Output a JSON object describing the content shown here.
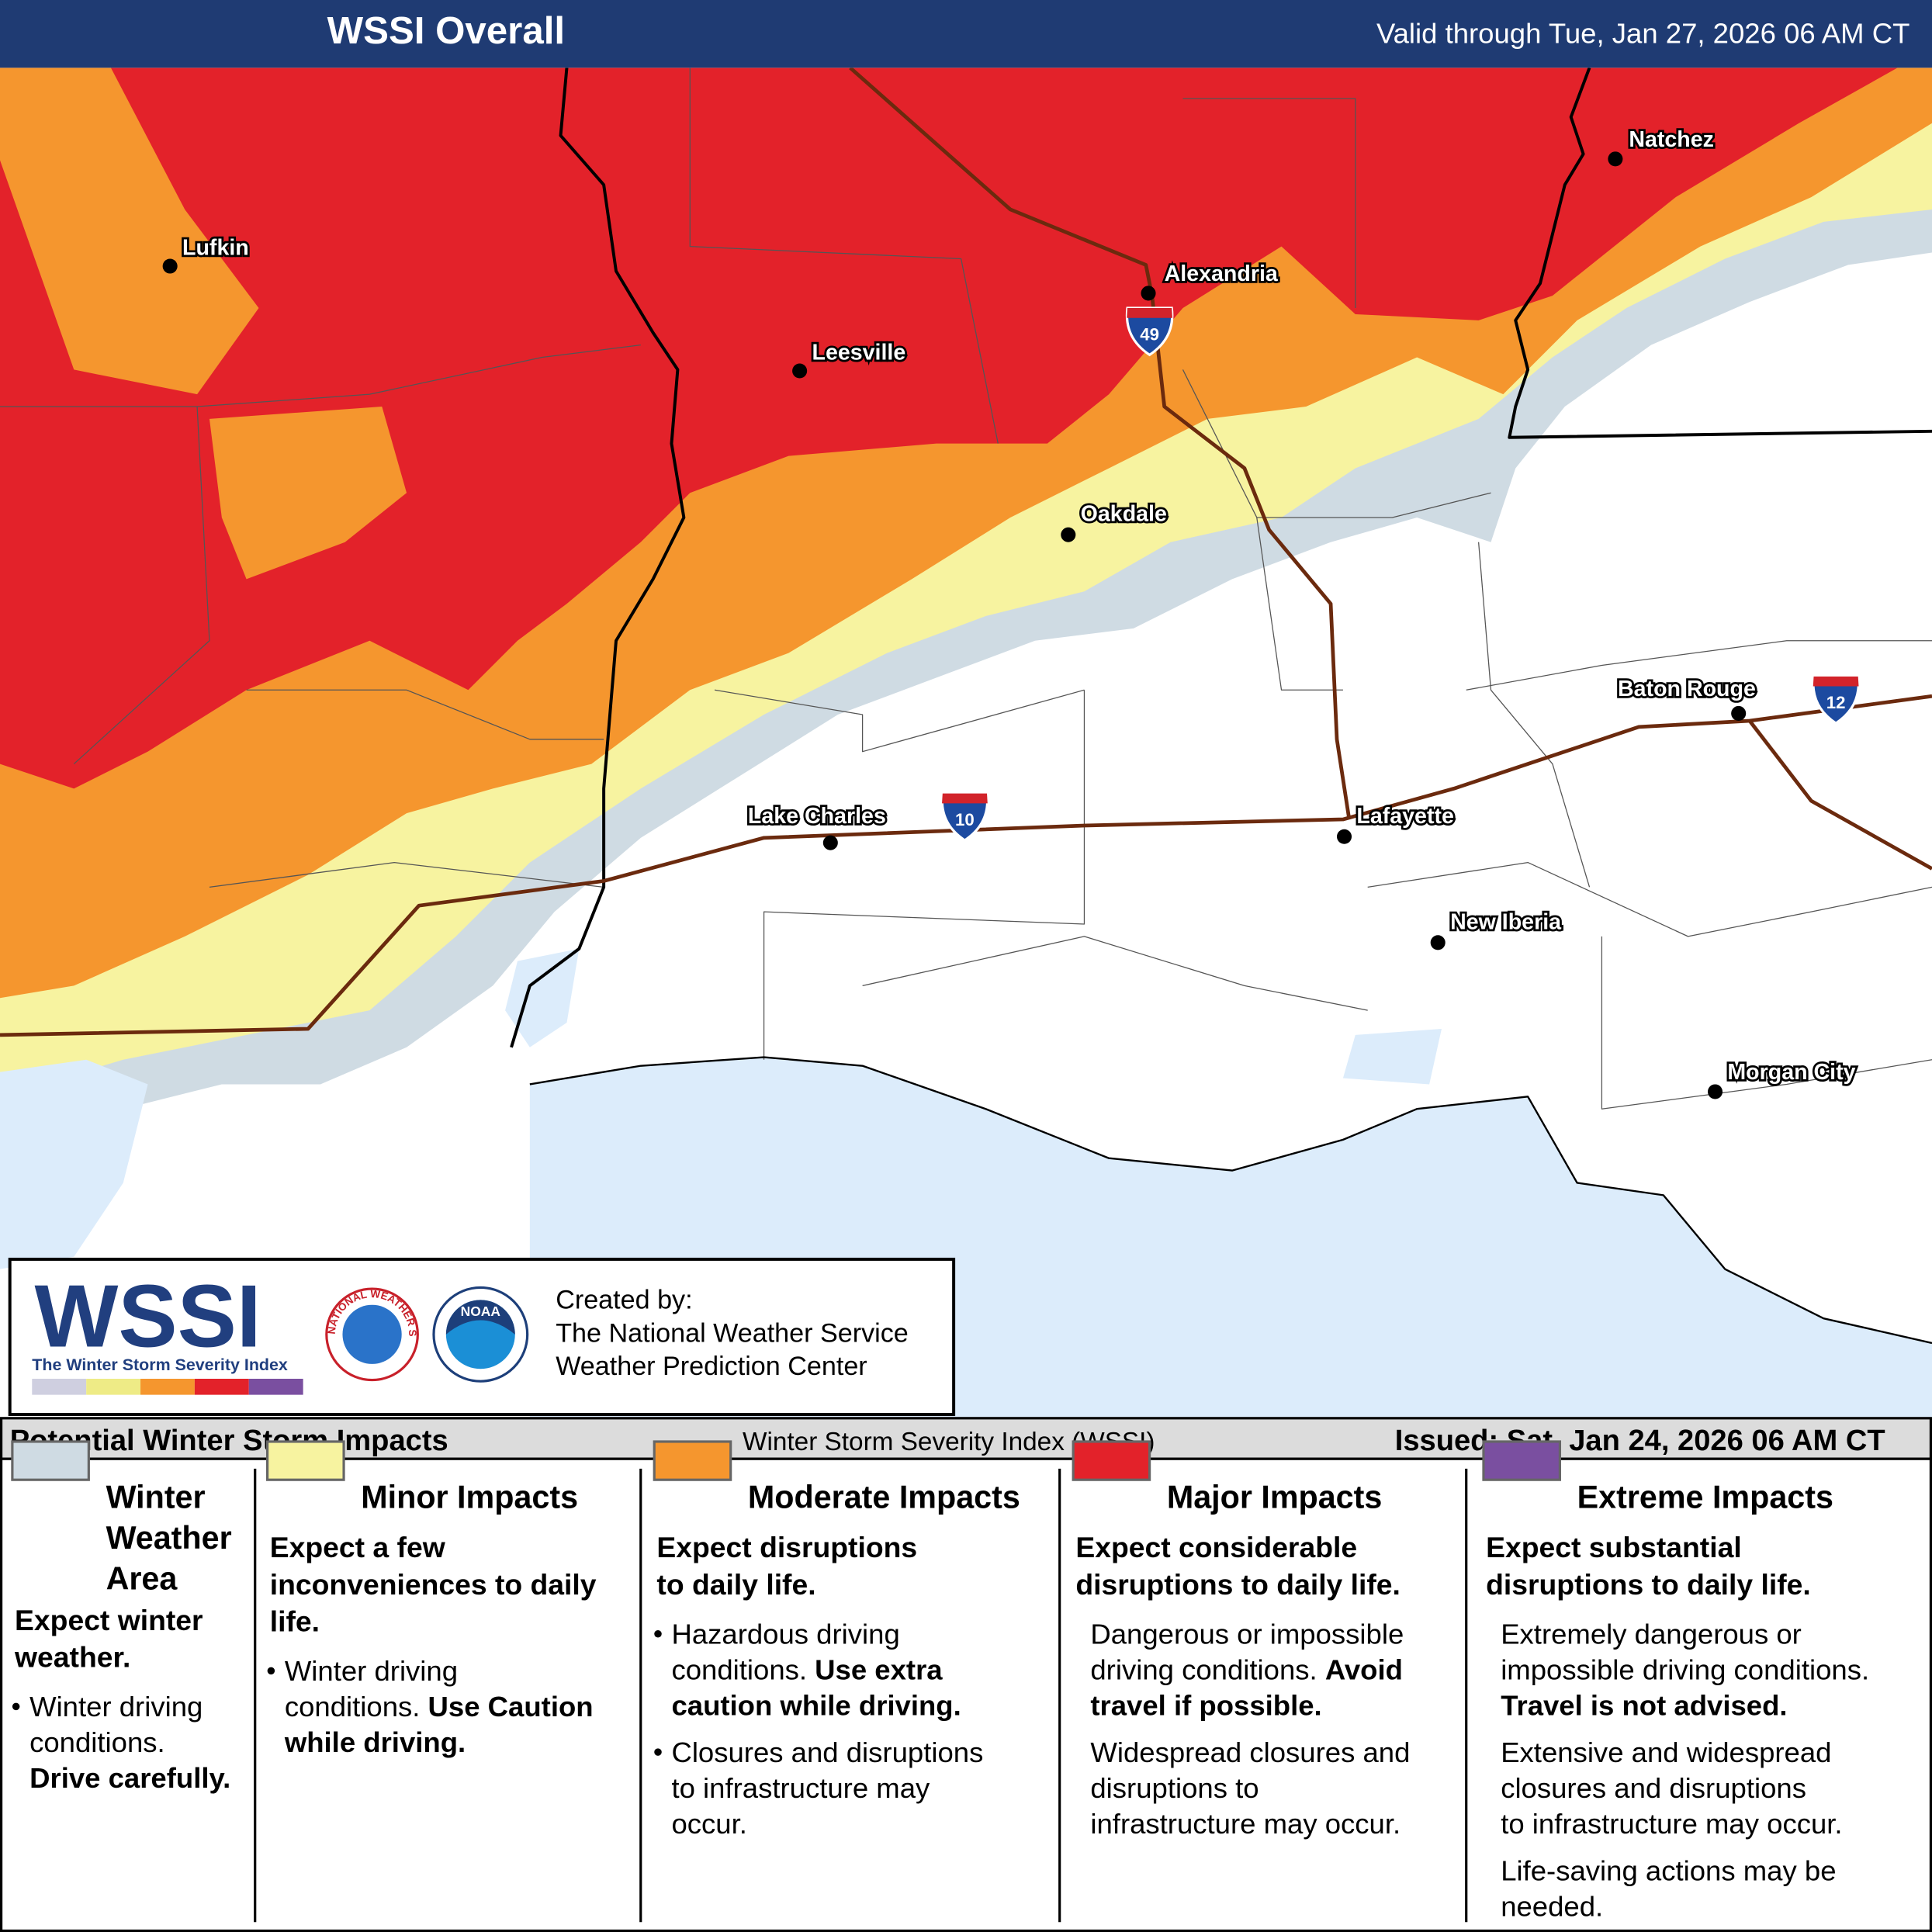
{
  "header": {
    "title": "WSSI Overall",
    "valid": "Valid through Tue, Jan 27, 2026 06 AM CT"
  },
  "map": {
    "cities": [
      "Lufkin",
      "Leesville",
      "Alexandria",
      "Natchez",
      "Oakdale",
      "Baton Rouge",
      "Lake Charles",
      "Lafayette",
      "New Iberia",
      "Morgan City"
    ],
    "interstates": [
      "49",
      "10",
      "12"
    ]
  },
  "credit": {
    "logo": "WSSI",
    "logo_subtitle": "The Winter Storm Severity Index",
    "created_by": [
      "Created by:",
      "The National Weather Service",
      "Weather Prediction Center"
    ],
    "nws_ring": "NATIONAL WEATHER SERVICE",
    "noaa": "NOAA"
  },
  "footer": {
    "left": "Potential Winter Storm Impacts",
    "center": "Winter Storm Severity Index (WSSI)",
    "right": "Issued: Sat, Jan 24, 2026 06 AM CT"
  },
  "legend": [
    {
      "color": "#cfdbe3",
      "title": [
        "Winter",
        "Weather",
        "Area"
      ],
      "headline": [
        "Expect winter",
        "weather."
      ],
      "bullets": true,
      "notes": [
        [
          [
            "Winter driving"
          ],
          [
            "conditions."
          ],
          [
            {
              "text": "Drive carefully.",
              "bold": true
            }
          ]
        ]
      ]
    },
    {
      "color": "#f7f3a0",
      "title": [
        "Minor Impacts"
      ],
      "headline": [
        "Expect a few",
        "inconveniences to daily",
        "life."
      ],
      "bullets": true,
      "notes": [
        [
          [
            "Winter driving"
          ],
          [
            "conditions. ",
            {
              "text": "Use Caution",
              "bold": true
            }
          ],
          [
            {
              "text": "while driving.",
              "bold": true
            }
          ]
        ]
      ]
    },
    {
      "color": "#f5962e",
      "title": [
        "Moderate Impacts"
      ],
      "headline": [
        "Expect disruptions",
        "to daily life."
      ],
      "bullets": true,
      "notes": [
        [
          [
            "Hazardous driving"
          ],
          [
            "conditions. ",
            {
              "text": "Use extra",
              "bold": true
            }
          ],
          [
            {
              "text": "caution while driving.",
              "bold": true
            }
          ]
        ],
        [
          [
            "Closures and disruptions"
          ],
          [
            "to infrastructure may"
          ],
          [
            "occur."
          ]
        ]
      ]
    },
    {
      "color": "#e3222a",
      "title": [
        "Major Impacts"
      ],
      "headline": [
        "Expect considerable",
        "disruptions to daily life."
      ],
      "bullets": false,
      "notes": [
        [
          [
            "Dangerous or impossible"
          ],
          [
            "driving conditions. ",
            {
              "text": "Avoid",
              "bold": true
            }
          ],
          [
            {
              "text": "travel if possible.",
              "bold": true
            }
          ]
        ],
        [
          [
            "Widespread closures and"
          ],
          [
            "disruptions to"
          ],
          [
            "infrastructure may occur."
          ]
        ]
      ]
    },
    {
      "color": "#7a4fa0",
      "title": [
        "Extreme Impacts"
      ],
      "headline": [
        "Expect substantial",
        "disruptions to daily life."
      ],
      "bullets": false,
      "notes": [
        [
          [
            "Extremely dangerous or"
          ],
          [
            "impossible driving conditions."
          ],
          [
            {
              "text": "Travel is not advised.",
              "bold": true
            }
          ]
        ],
        [
          [
            "Extensive and widespread"
          ],
          [
            "closures and disruptions"
          ],
          [
            "to infrastructure may occur."
          ]
        ],
        [
          [
            "Life-saving actions may be"
          ],
          [
            "needed."
          ]
        ]
      ]
    }
  ]
}
